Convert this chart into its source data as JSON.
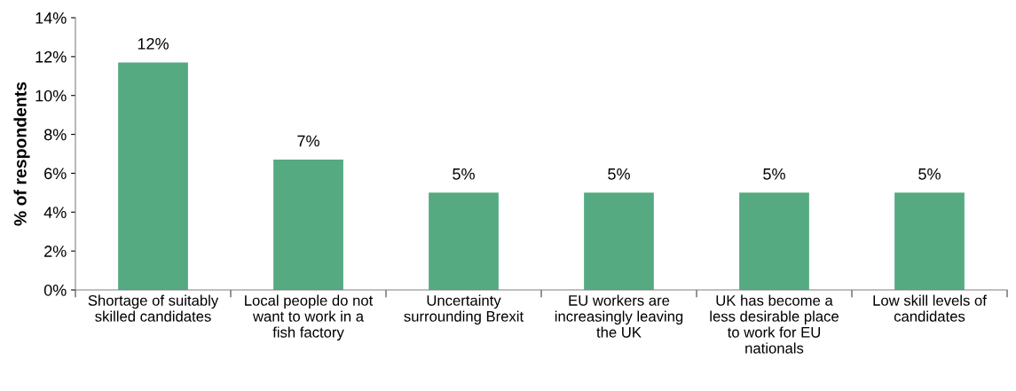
{
  "chart_data": {
    "type": "bar",
    "ylabel": "% of respondents",
    "categories": [
      "Shortage of suitably\nskilled candidates",
      "Local people do not\nwant to work in a\nfish factory",
      "Uncertainty\nsurrounding Brexit",
      "EU workers are\nincreasingly leaving\nthe UK",
      "UK has become a\nless desirable place\nto work for EU\nnationals",
      "Low skill levels of\ncandidates"
    ],
    "values": [
      11.7,
      6.7,
      5,
      5,
      5,
      5
    ],
    "value_labels": [
      "12%",
      "7%",
      "5%",
      "5%",
      "5%",
      "5%"
    ],
    "color": "#55aa82",
    "ylim": [
      0,
      14
    ],
    "yticks": [
      {
        "value": 0,
        "label": "0%"
      },
      {
        "value": 2,
        "label": "2%"
      },
      {
        "value": 4,
        "label": "4%"
      },
      {
        "value": 6,
        "label": "6%"
      },
      {
        "value": 8,
        "label": "8%"
      },
      {
        "value": 10,
        "label": "10%"
      },
      {
        "value": 12,
        "label": "12%"
      },
      {
        "value": 14,
        "label": "14%"
      }
    ],
    "grid": false
  }
}
